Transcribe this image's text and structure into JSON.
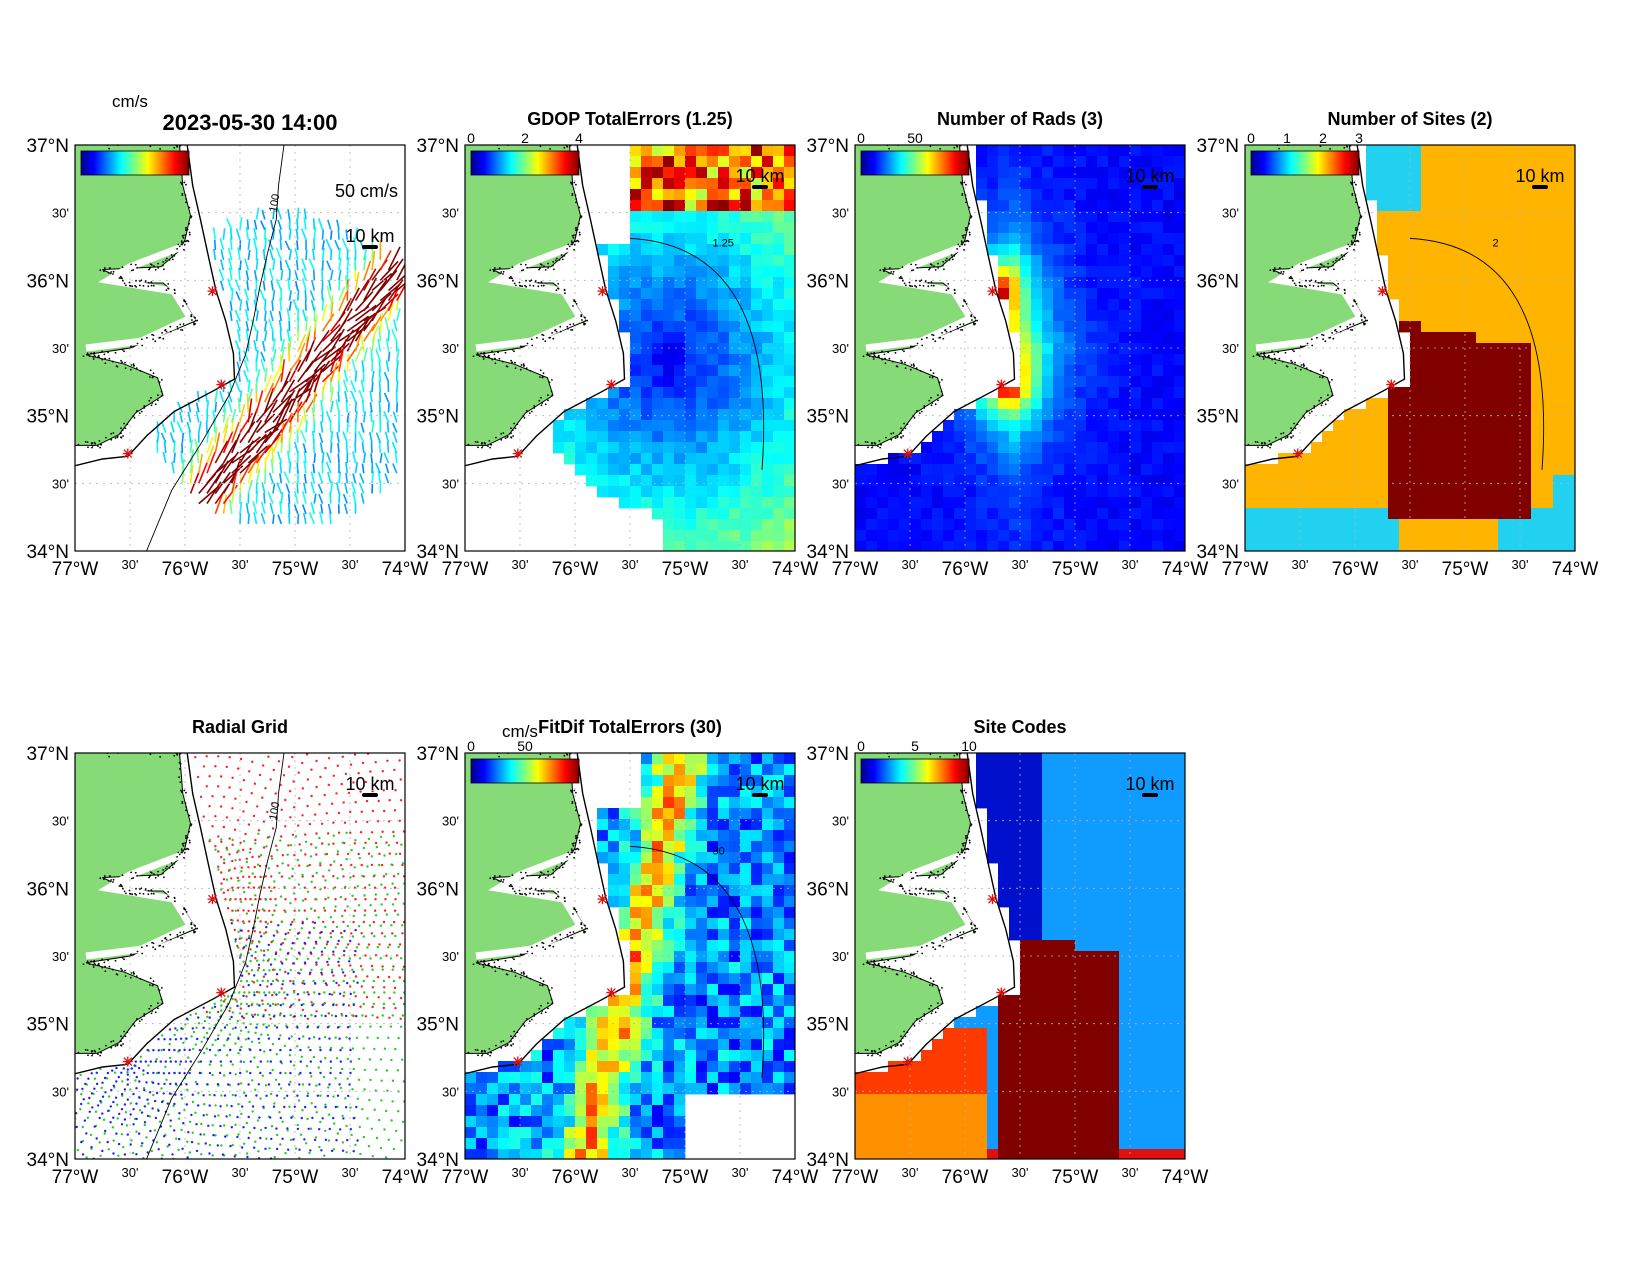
{
  "figure": {
    "main_title": "2023-05-30 14:00",
    "lat_labels": [
      "37°N",
      "30'",
      "36°N",
      "30'",
      "35°N",
      "30'",
      "34°N"
    ],
    "lon_labels": [
      "77°W",
      "30'",
      "76°W",
      "30'",
      "75°W",
      "30'",
      "74°W"
    ],
    "scale_bar_label": "10 km",
    "isobath_label": "100",
    "colors": {
      "land": "#86db78",
      "panel_bg": "#ffffff",
      "grid": "#b4b4b4",
      "site_marker": "#e01010",
      "high": "#800000",
      "orange": "#ffb400",
      "cyan": "#22d0f0",
      "blue": "#1a2ee0",
      "light_blue": "#0f9bff"
    }
  },
  "panels": [
    {
      "id": "total-currents",
      "title": "",
      "unit_label": "cm/s",
      "vector_scale_label": "50 cm/s",
      "colorbar_ticks": [],
      "field": "current-vectors"
    },
    {
      "id": "gdop",
      "title": "GDOP TotalErrors (1.25)",
      "unit_label": "",
      "colorbar_ticks": [
        "0",
        "2",
        "4"
      ],
      "contour_label": "1.25",
      "field": "jet-grid"
    },
    {
      "id": "num-rads",
      "title": "Number of Rads (3)",
      "unit_label": "",
      "colorbar_ticks": [
        "0",
        "50"
      ],
      "field": "jet-grid"
    },
    {
      "id": "num-sites",
      "title": "Number of Sites (2)",
      "unit_label": "",
      "colorbar_ticks": [
        "0",
        "1",
        "2",
        "3"
      ],
      "contour_label": "2",
      "field": "categorical"
    },
    {
      "id": "radial-grid",
      "title": "Radial Grid",
      "unit_label": "",
      "colorbar_ticks": [],
      "field": "radial-dots"
    },
    {
      "id": "fitdif",
      "title": "FitDif TotalErrors (30)",
      "unit_label": "cm/s",
      "colorbar_ticks": [
        "0",
        "50"
      ],
      "contour_label": "30",
      "field": "jet-grid"
    },
    {
      "id": "site-codes",
      "title": "Site Codes",
      "unit_label": "",
      "colorbar_ticks": [
        "0",
        "5",
        "10"
      ],
      "field": "categorical"
    }
  ],
  "sites": [
    {
      "lon": -75.75,
      "lat": 35.92
    },
    {
      "lon": -75.67,
      "lat": 35.23
    },
    {
      "lon": -76.52,
      "lat": 34.72
    }
  ]
}
